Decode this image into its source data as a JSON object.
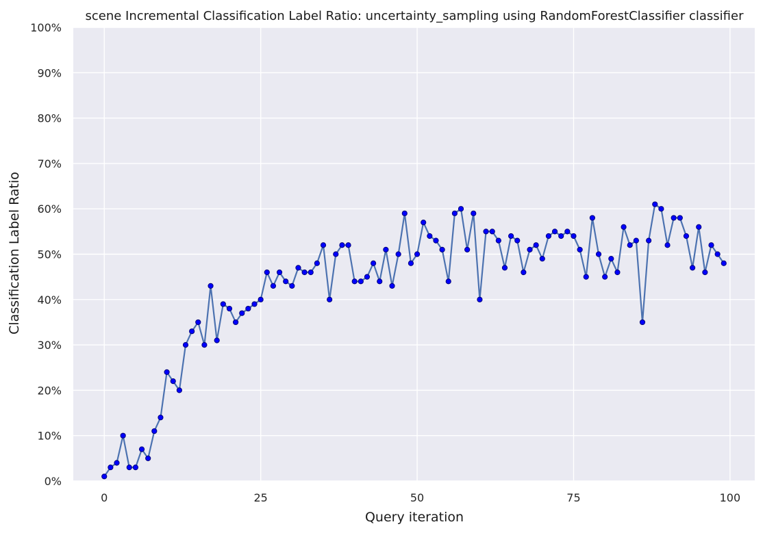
{
  "chart_data": {
    "type": "line",
    "title": "scene Incremental Classification Label Ratio: uncertainty_sampling using RandomForestClassifier classifier",
    "xlabel": "Query iteration",
    "ylabel": "Classification Label Ratio",
    "xlim": [
      -4.95,
      103.95
    ],
    "ylim": [
      0,
      1
    ],
    "x_ticks": [
      0,
      25,
      50,
      75,
      100
    ],
    "x_tick_labels": [
      "0",
      "25",
      "50",
      "75",
      "100"
    ],
    "y_ticks": [
      0,
      0.1,
      0.2,
      0.3,
      0.4,
      0.5,
      0.6,
      0.7,
      0.8,
      0.9,
      1.0
    ],
    "y_tick_labels": [
      "0%",
      "10%",
      "20%",
      "30%",
      "40%",
      "50%",
      "60%",
      "70%",
      "80%",
      "90%",
      "100%"
    ],
    "grid": true,
    "colors": {
      "plot_background": "#eaeaf2",
      "grid": "#ffffff",
      "line": "#4c72b0",
      "marker": "#0000ff",
      "marker_edge": "#00007a"
    },
    "series": [
      {
        "x": [
          0,
          1,
          2,
          3,
          4,
          5,
          6,
          7,
          8,
          9,
          10,
          11,
          12,
          13,
          14,
          15,
          16,
          17,
          18,
          19,
          20,
          21,
          22,
          23,
          24,
          25,
          26,
          27,
          28,
          29,
          30,
          31,
          32,
          33,
          34,
          35,
          36,
          37,
          38,
          39,
          40,
          41,
          42,
          43,
          44,
          45,
          46,
          47,
          48,
          49,
          50,
          51,
          52,
          53,
          54,
          55,
          56,
          57,
          58,
          59,
          60,
          61,
          62,
          63,
          64,
          65,
          66,
          67,
          68,
          69,
          70,
          71,
          72,
          73,
          74,
          75,
          76,
          77,
          78,
          79,
          80,
          81,
          82,
          83,
          84,
          85,
          86,
          87,
          88,
          89,
          90,
          91,
          92,
          93,
          94,
          95,
          96,
          97,
          98,
          99
        ],
        "values": [
          0.01,
          0.03,
          0.04,
          0.1,
          0.03,
          0.03,
          0.07,
          0.05,
          0.11,
          0.14,
          0.24,
          0.22,
          0.2,
          0.3,
          0.33,
          0.35,
          0.3,
          0.43,
          0.31,
          0.39,
          0.38,
          0.35,
          0.37,
          0.38,
          0.39,
          0.4,
          0.46,
          0.43,
          0.46,
          0.44,
          0.43,
          0.47,
          0.46,
          0.46,
          0.48,
          0.52,
          0.4,
          0.5,
          0.52,
          0.52,
          0.44,
          0.44,
          0.45,
          0.48,
          0.44,
          0.51,
          0.43,
          0.5,
          0.59,
          0.48,
          0.5,
          0.57,
          0.54,
          0.53,
          0.51,
          0.44,
          0.59,
          0.6,
          0.51,
          0.59,
          0.4,
          0.55,
          0.55,
          0.53,
          0.47,
          0.54,
          0.53,
          0.46,
          0.51,
          0.52,
          0.49,
          0.54,
          0.55,
          0.54,
          0.55,
          0.54,
          0.51,
          0.45,
          0.58,
          0.5,
          0.45,
          0.49,
          0.46,
          0.56,
          0.52,
          0.53,
          0.35,
          0.53,
          0.61,
          0.6,
          0.52,
          0.58,
          0.58,
          0.54,
          0.47,
          0.56,
          0.46,
          0.52,
          0.5,
          0.48
        ]
      }
    ]
  }
}
